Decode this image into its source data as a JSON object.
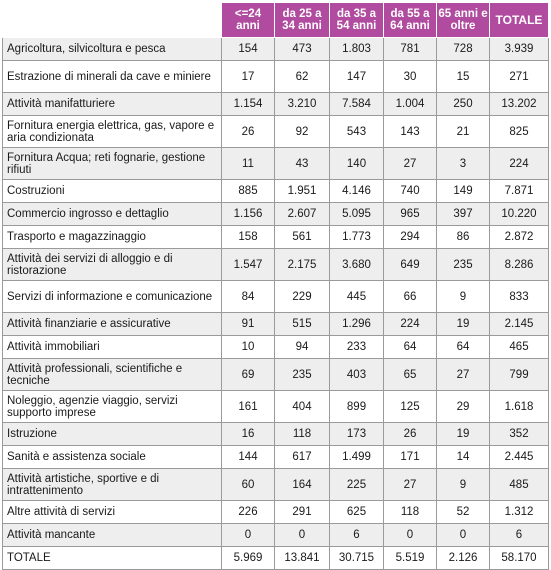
{
  "table": {
    "headers": [
      "<=24 anni",
      "da 25 a 34 anni",
      "da 35 a 54 anni",
      "da 55 a 64 anni",
      "65 anni e oltre",
      "TOTALE"
    ],
    "rows": [
      {
        "label": "Agricoltura, silvicoltura e pesca",
        "values": [
          "154",
          "473",
          "1.803",
          "781",
          "728",
          "3.939"
        ]
      },
      {
        "label": "Estrazione di minerali da cave e miniere",
        "values": [
          "17",
          "62",
          "147",
          "30",
          "15",
          "271"
        ]
      },
      {
        "label": "Attività manifatturiere",
        "values": [
          "1.154",
          "3.210",
          "7.584",
          "1.004",
          "250",
          "13.202"
        ]
      },
      {
        "label": "Fornitura energia elettrica, gas, vapore e aria condizionata",
        "values": [
          "26",
          "92",
          "543",
          "143",
          "21",
          "825"
        ]
      },
      {
        "label": "Fornitura Acqua; reti fognarie, gestione rifiuti",
        "values": [
          "11",
          "43",
          "140",
          "27",
          "3",
          "224"
        ]
      },
      {
        "label": "Costruzioni",
        "values": [
          "885",
          "1.951",
          "4.146",
          "740",
          "149",
          "7.871"
        ]
      },
      {
        "label": "Commercio ingrosso e dettaglio",
        "values": [
          "1.156",
          "2.607",
          "5.095",
          "965",
          "397",
          "10.220"
        ]
      },
      {
        "label": "Trasporto e magazzinaggio",
        "values": [
          "158",
          "561",
          "1.773",
          "294",
          "86",
          "2.872"
        ]
      },
      {
        "label": "Attività dei servizi di alloggio e di ristorazione",
        "values": [
          "1.547",
          "2.175",
          "3.680",
          "649",
          "235",
          "8.286"
        ]
      },
      {
        "label": "Servizi di informazione e comunicazione",
        "values": [
          "84",
          "229",
          "445",
          "66",
          "9",
          "833"
        ]
      },
      {
        "label": "Attività finanziarie e assicurative",
        "values": [
          "91",
          "515",
          "1.296",
          "224",
          "19",
          "2.145"
        ]
      },
      {
        "label": "Attività immobiliari",
        "values": [
          "10",
          "94",
          "233",
          "64",
          "64",
          "465"
        ]
      },
      {
        "label": "Attività professionali, scientifiche e tecniche",
        "values": [
          "69",
          "235",
          "403",
          "65",
          "27",
          "799"
        ]
      },
      {
        "label": "Noleggio, agenzie viaggio, servizi supporto imprese",
        "values": [
          "161",
          "404",
          "899",
          "125",
          "29",
          "1.618"
        ]
      },
      {
        "label": "Istruzione",
        "values": [
          "16",
          "118",
          "173",
          "26",
          "19",
          "352"
        ]
      },
      {
        "label": "Sanità e assistenza sociale",
        "values": [
          "144",
          "617",
          "1.499",
          "171",
          "14",
          "2.445"
        ]
      },
      {
        "label": "Attività artistiche, sportive e di intrattenimento",
        "values": [
          "60",
          "164",
          "225",
          "27",
          "9",
          "485"
        ]
      },
      {
        "label": "Altre attività di servizi",
        "values": [
          "226",
          "291",
          "625",
          "118",
          "52",
          "1.312"
        ]
      },
      {
        "label": "Attività mancante",
        "values": [
          "0",
          "0",
          "6",
          "0",
          "0",
          "6"
        ]
      },
      {
        "label": "TOTALE",
        "values": [
          "5.969",
          "13.841",
          "30.715",
          "5.519",
          "2.126",
          "58.170"
        ]
      }
    ]
  },
  "colors": {
    "header_bg": "#b04b9f",
    "stripe": "#eeeeee"
  }
}
